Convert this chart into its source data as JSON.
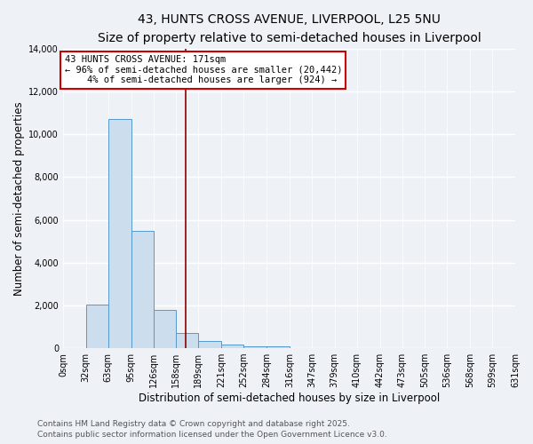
{
  "title": "43, HUNTS CROSS AVENUE, LIVERPOOL, L25 5NU",
  "subtitle": "Size of property relative to semi-detached houses in Liverpool",
  "xlabel": "Distribution of semi-detached houses by size in Liverpool",
  "ylabel": "Number of semi-detached properties",
  "bar_color": "#ccdded",
  "bar_edgecolor": "#5599cc",
  "bin_edges": [
    0,
    32,
    63,
    95,
    126,
    158,
    189,
    221,
    252,
    284,
    316,
    347,
    379,
    410,
    442,
    473,
    505,
    536,
    568,
    599,
    631
  ],
  "bin_labels": [
    "0sqm",
    "32sqm",
    "63sqm",
    "95sqm",
    "126sqm",
    "158sqm",
    "189sqm",
    "221sqm",
    "252sqm",
    "284sqm",
    "316sqm",
    "347sqm",
    "379sqm",
    "410sqm",
    "442sqm",
    "473sqm",
    "505sqm",
    "536sqm",
    "568sqm",
    "599sqm",
    "631sqm"
  ],
  "counts": [
    0,
    2050,
    10700,
    5500,
    1800,
    700,
    350,
    150,
    100,
    100,
    0,
    0,
    0,
    0,
    0,
    0,
    0,
    0,
    0,
    0
  ],
  "ylim": [
    0,
    14000
  ],
  "yticks": [
    0,
    2000,
    4000,
    6000,
    8000,
    10000,
    12000,
    14000
  ],
  "property_size": 171,
  "property_line_color": "#8b0000",
  "annotation_text": "43 HUNTS CROSS AVENUE: 171sqm\n← 96% of semi-detached houses are smaller (20,442)\n    4% of semi-detached houses are larger (924) →",
  "annotation_box_color": "#ffffff",
  "annotation_box_edgecolor": "#cc0000",
  "footer_line1": "Contains HM Land Registry data © Crown copyright and database right 2025.",
  "footer_line2": "Contains public sector information licensed under the Open Government Licence v3.0.",
  "background_color": "#eef2f7",
  "plot_background": "#eef2f7",
  "grid_color": "#ffffff",
  "title_fontsize": 10,
  "subtitle_fontsize": 9,
  "axis_label_fontsize": 8.5,
  "tick_fontsize": 7,
  "annotation_fontsize": 7.5,
  "footer_fontsize": 6.5
}
